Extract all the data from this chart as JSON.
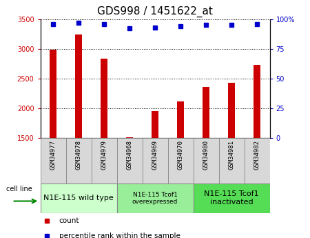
{
  "title": "GDS998 / 1451622_at",
  "categories": [
    "GSM34977",
    "GSM34978",
    "GSM34979",
    "GSM34968",
    "GSM34969",
    "GSM34970",
    "GSM34980",
    "GSM34981",
    "GSM34982"
  ],
  "counts": [
    2990,
    3240,
    2840,
    1510,
    1950,
    2110,
    2360,
    2430,
    2730
  ],
  "percentiles": [
    96,
    97,
    96,
    92,
    93,
    94,
    95,
    95,
    96
  ],
  "ylim_left": [
    1500,
    3500
  ],
  "ylim_right": [
    0,
    100
  ],
  "yticks_left": [
    1500,
    2000,
    2500,
    3000,
    3500
  ],
  "yticks_right": [
    0,
    25,
    50,
    75,
    100
  ],
  "bar_color": "#cc0000",
  "dot_color": "#0000cc",
  "groups": [
    {
      "label": "N1E-115 wild type",
      "start": 0,
      "end": 3,
      "color": "#ccffcc",
      "fontsize": 8
    },
    {
      "label": "N1E-115 Tcof1\noverexpressed",
      "start": 3,
      "end": 6,
      "color": "#99ee99",
      "fontsize": 6.5
    },
    {
      "label": "N1E-115 Tcof1\ninactivated",
      "start": 6,
      "end": 9,
      "color": "#55dd55",
      "fontsize": 8
    }
  ],
  "cell_line_label": "cell line",
  "legend_count_label": "count",
  "legend_percentile_label": "percentile rank within the sample",
  "title_fontsize": 11,
  "tick_fontsize": 7,
  "xtick_fontsize": 6.5,
  "label_fontsize": 8,
  "xtick_bg": "#d8d8d8",
  "xtick_border": "#888888"
}
